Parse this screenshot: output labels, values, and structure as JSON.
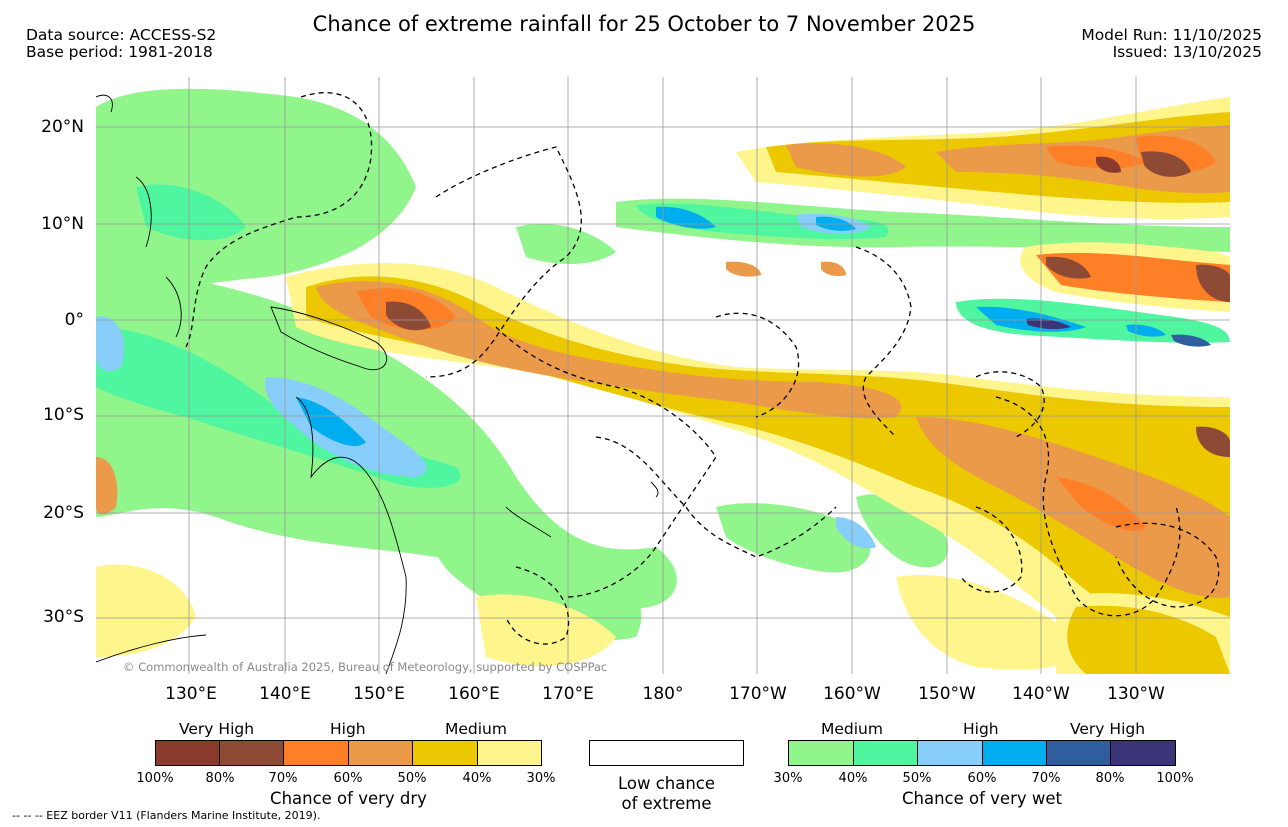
{
  "header": {
    "title": "Chance of extreme rainfall for 25 October to 7 November 2025",
    "data_source": "Data source: ACCESS-S2",
    "base_period": "Base period: 1981-2018",
    "model_run": "Model Run: 11/10/2025",
    "issued": "Issued: 13/10/2025"
  },
  "map": {
    "lat_labels": [
      "20°N",
      "10°N",
      "0°",
      "10°S",
      "20°S",
      "30°S"
    ],
    "lon_labels": [
      "130°E",
      "140°E",
      "150°E",
      "160°E",
      "170°E",
      "180°",
      "170°W",
      "160°W",
      "150°W",
      "140°W",
      "130°W"
    ],
    "copyright": "© Commonwealth of Australia 2025, Bureau of Meteorology, supported by COSPPac"
  },
  "legend": {
    "dry": {
      "title": "Chance of very dry",
      "categories": [
        "Very High",
        "High",
        "Medium"
      ],
      "colors": [
        "#8b3a2e",
        "#8d4a35",
        "#ff7f27",
        "#eb9a4a",
        "#ebc800",
        "#fef58c"
      ],
      "ticks": [
        "100%",
        "80%",
        "70%",
        "60%",
        "50%",
        "40%",
        "30%"
      ]
    },
    "neutral": {
      "line1": "Low chance",
      "line2": "of extreme",
      "color": "#ffffff"
    },
    "wet": {
      "title": "Chance of very wet",
      "categories": [
        "Medium",
        "High",
        "Very High"
      ],
      "colors": [
        "#90f58b",
        "#50f5a0",
        "#87cefa",
        "#00aeef",
        "#2f5d9e",
        "#3a3578"
      ],
      "ticks": [
        "30%",
        "40%",
        "50%",
        "60%",
        "70%",
        "80%",
        "100%"
      ]
    }
  },
  "footer": {
    "eez_note": "--  --  -- EEZ border V11 (Flanders Marine Institute, 2019)."
  }
}
